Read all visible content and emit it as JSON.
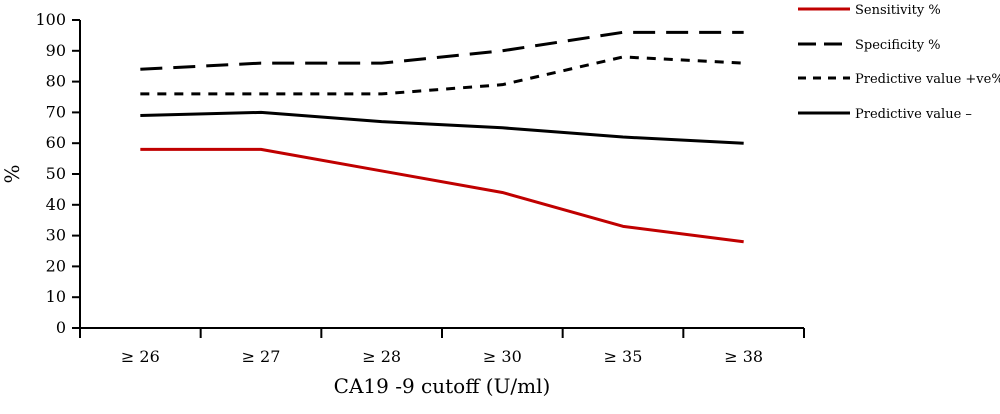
{
  "chart_data": {
    "type": "line",
    "title": "",
    "xlabel": "CA19  -9 cutoff (U/ml)",
    "ylabel": "%",
    "ylim": [
      0,
      100
    ],
    "yticks": [
      0,
      10,
      20,
      30,
      40,
      50,
      60,
      70,
      80,
      90,
      100
    ],
    "categories": [
      "≥ 26",
      "≥ 27",
      "≥ 28",
      "≥ 30",
      "≥ 35",
      "≥ 38"
    ],
    "grid": false,
    "legend_position": "right",
    "series": [
      {
        "name": "Sensitivity %",
        "values": [
          58,
          58,
          51,
          44,
          33,
          28
        ],
        "color": "#c00000",
        "dash": "solid"
      },
      {
        "name": "Specificity %",
        "values": [
          84,
          86,
          86,
          90,
          96,
          96
        ],
        "color": "#000000",
        "dash": "long-dash"
      },
      {
        "name": "Predictive value +ve%",
        "values": [
          76,
          76,
          76,
          79,
          88,
          86
        ],
        "color": "#000000",
        "dash": "short-dash"
      },
      {
        "name": "Predictive value –",
        "values": [
          69,
          70,
          67,
          65,
          62,
          60
        ],
        "color": "#000000",
        "dash": "solid"
      }
    ]
  }
}
